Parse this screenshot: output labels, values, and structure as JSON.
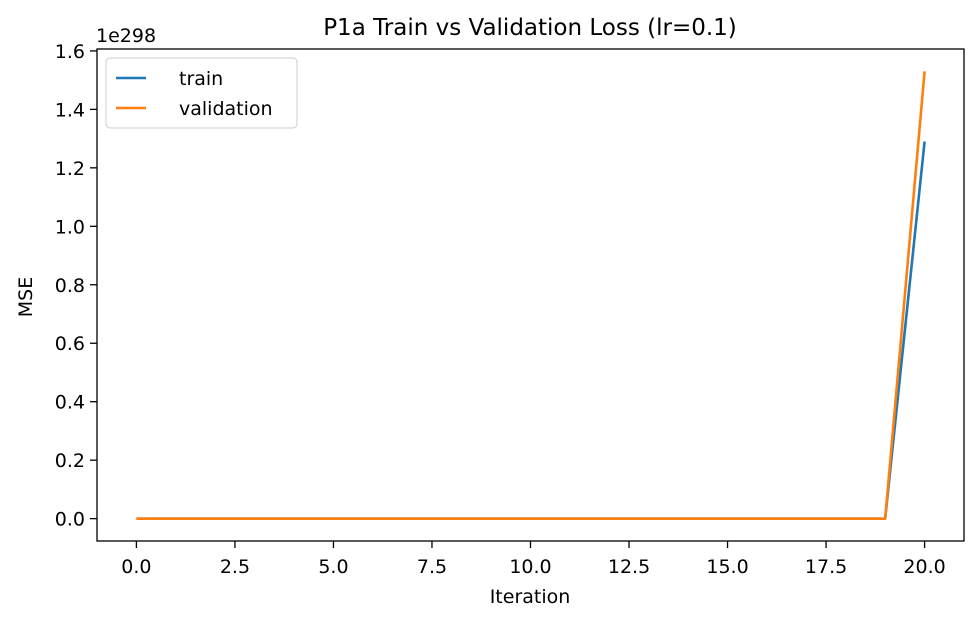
{
  "chart_data": {
    "type": "line",
    "title": "P1a Train vs Validation Loss (lr=0.1)",
    "xlabel": "Iteration",
    "ylabel": "MSE",
    "y_offset_text": "1e298",
    "y_scale_exponent": 298,
    "x": [
      0,
      1,
      2,
      3,
      4,
      5,
      6,
      7,
      8,
      9,
      10,
      11,
      12,
      13,
      14,
      15,
      16,
      17,
      18,
      19,
      20
    ],
    "series": [
      {
        "name": "train",
        "color": "#1f77b4",
        "values": [
          0,
          0,
          0,
          0,
          0,
          0,
          0,
          0,
          0,
          0,
          0,
          0,
          0,
          0,
          0,
          0,
          0,
          0,
          0,
          0,
          1.29
        ]
      },
      {
        "name": "validation",
        "color": "#ff7f0e",
        "values": [
          0,
          0,
          0,
          0,
          0,
          0,
          0,
          0,
          0,
          0,
          0,
          0,
          0,
          0,
          0,
          0,
          0,
          0,
          0,
          0,
          1.53
        ]
      }
    ],
    "xlim": [
      -1,
      21
    ],
    "ylim": [
      -0.0765,
      1.6065
    ],
    "x_ticks": [
      0,
      2.5,
      5,
      7.5,
      10,
      12.5,
      15,
      17.5,
      20
    ],
    "x_tick_labels": [
      "0.0",
      "2.5",
      "5.0",
      "7.5",
      "10.0",
      "12.5",
      "15.0",
      "17.5",
      "20.0"
    ],
    "y_ticks": [
      0,
      0.2,
      0.4,
      0.6,
      0.8,
      1.0,
      1.2,
      1.4,
      1.6
    ],
    "y_tick_labels": [
      "0.0",
      "0.2",
      "0.4",
      "0.6",
      "0.8",
      "1.0",
      "1.2",
      "1.4",
      "1.6"
    ],
    "grid": false,
    "legend_position": "top-left"
  }
}
